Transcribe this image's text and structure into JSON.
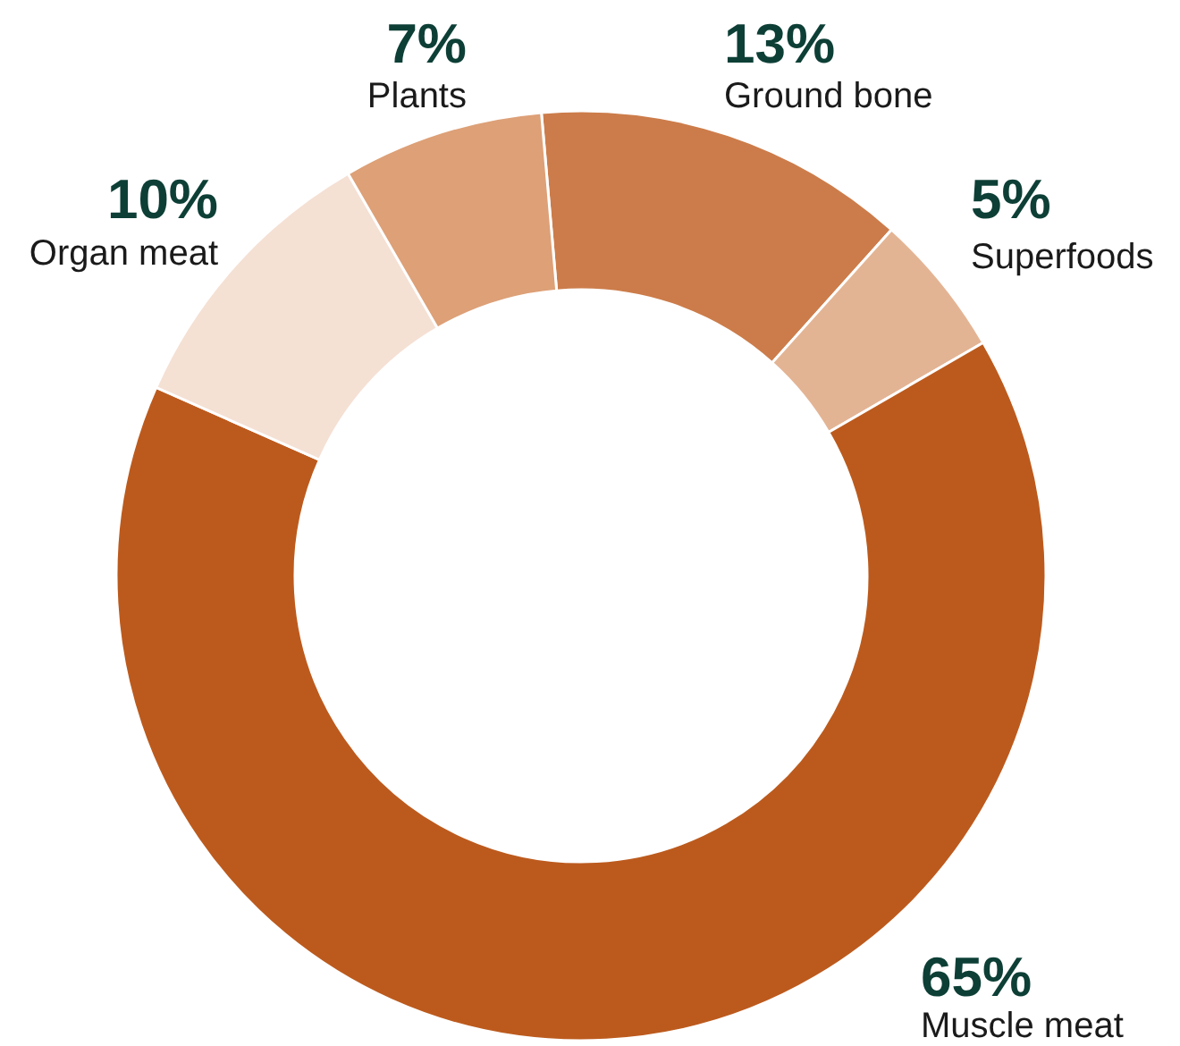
{
  "chart_data": {
    "type": "donut",
    "categories": [
      "Ground bone",
      "Superfoods",
      "Muscle meat",
      "Organ meat",
      "Plants"
    ],
    "values": [
      13,
      5,
      65,
      10,
      7
    ],
    "value_labels": [
      "13%",
      "5%",
      "65%",
      "10%",
      "7%"
    ],
    "colors": [
      "#cc7c4a",
      "#e3b494",
      "#bc5a1d",
      "#f5e0d4",
      "#dda077"
    ]
  }
}
